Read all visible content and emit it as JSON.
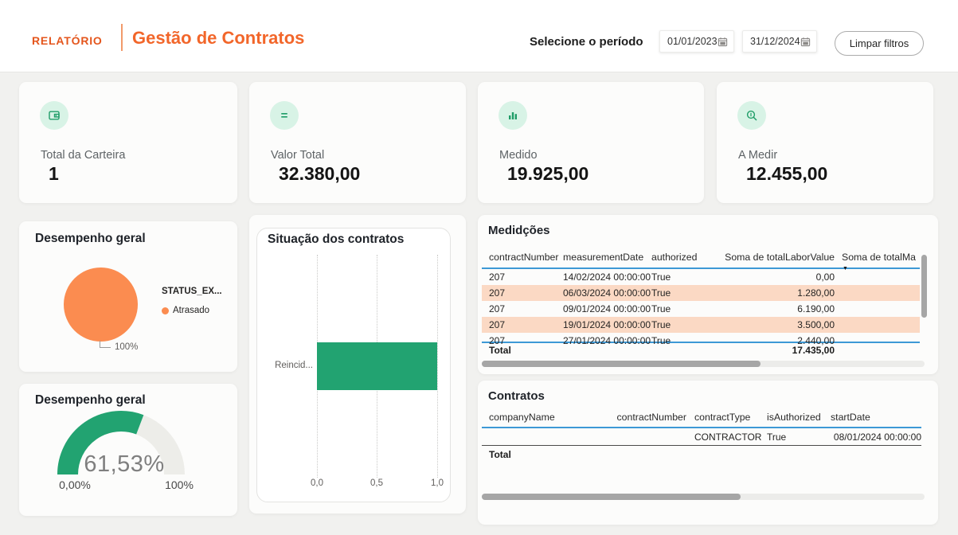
{
  "header": {
    "brand": "RELATÓRIO",
    "title": "Gestão de Contratos",
    "period_label": "Selecione o período",
    "date_from": "01/01/2023",
    "date_to": "31/12/2024",
    "clear_filters_label": "Limpar filtros"
  },
  "colors": {
    "brand_orange": "#E4561D",
    "title_orange": "#F2662A",
    "pie_orange": "#FB8C50",
    "green": "#22A371",
    "mint_icon_bg": "#D8F3E6",
    "salmon_row": "#FBD9C4",
    "table_line_blue": "#3D99D6"
  },
  "kpis": [
    {
      "label": "Total da Carteira",
      "value": "1",
      "icon": "wallet-icon"
    },
    {
      "label": "Valor Total",
      "value": "32.380,00",
      "icon": "equals-icon"
    },
    {
      "label": "Medido",
      "value": "19.925,00",
      "icon": "bar-chart-icon"
    },
    {
      "label": "A Medir",
      "value": "12.455,00",
      "icon": "magnifier-icon"
    }
  ],
  "chart_data": [
    {
      "type": "pie",
      "title": "Desempenho geral",
      "legend_title": "STATUS_EX...",
      "categories": [
        "Atrasado"
      ],
      "values": [
        100
      ],
      "data_labels": [
        "100%"
      ],
      "colors": [
        "#FB8C50"
      ],
      "legend_position": "right"
    },
    {
      "type": "gauge",
      "title": "Desempenho geral",
      "value": 61.53,
      "display_value": "61,53%",
      "min": 0,
      "max": 100,
      "min_label": "0,00%",
      "max_label": "100%",
      "color": "#22A371",
      "track_color": "#EDEDE9"
    },
    {
      "type": "bar",
      "title": "Situação dos contratos",
      "orientation": "horizontal",
      "categories": [
        "Reincid..."
      ],
      "values": [
        1
      ],
      "xlim": [
        0,
        1
      ],
      "x_ticks": [
        "0,0",
        "0,5",
        "1,0"
      ],
      "color": "#22A371",
      "grid": "vertical-dotted"
    }
  ],
  "measurements_table": {
    "title": "Medidções",
    "columns": [
      "contractNumber",
      "measurementDate",
      "authorized",
      "Soma de totalLaborValue",
      "Soma de totalMa"
    ],
    "sorted_column": "Soma de totalMa",
    "sort_direction": "desc",
    "rows": [
      [
        "207",
        "14/02/2024 00:00:00",
        "True",
        "0,00"
      ],
      [
        "207",
        "06/03/2024 00:00:00",
        "True",
        "1.280,00"
      ],
      [
        "207",
        "09/01/2024 00:00:00",
        "True",
        "6.190,00"
      ],
      [
        "207",
        "19/01/2024 00:00:00",
        "True",
        "3.500,00"
      ],
      [
        "207",
        "27/01/2024 00:00:00",
        "True",
        "2.440,00"
      ]
    ],
    "total_label": "Total",
    "total_value": "17.435,00"
  },
  "contracts_table": {
    "title": "Contratos",
    "columns": [
      "companyName",
      "contractNumber",
      "contractType",
      "isAuthorized",
      "startDate"
    ],
    "rows": [
      [
        "",
        "",
        "CONTRACTOR",
        "True",
        "08/01/2024 00:00:00"
      ]
    ],
    "total_label": "Total"
  }
}
